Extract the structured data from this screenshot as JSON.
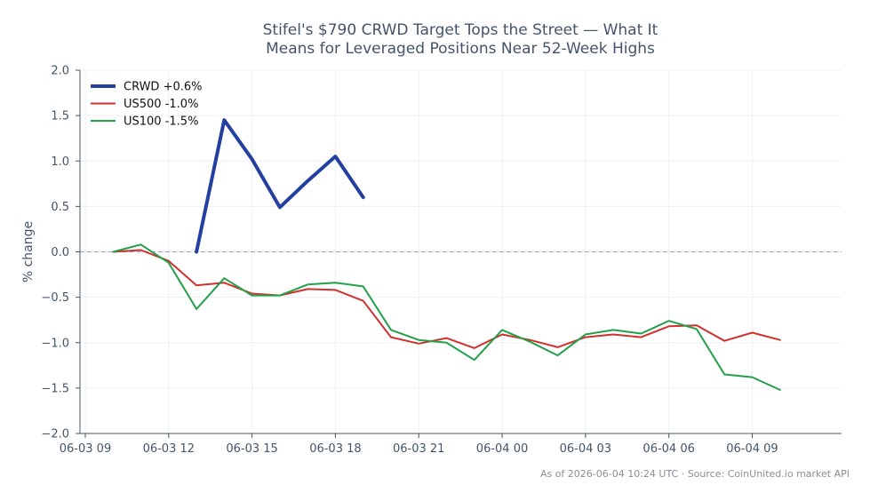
{
  "chart_data": {
    "type": "line",
    "title_lines": [
      "Stifel's $790 CRWD Target Tops the Street — What It",
      "Means for Leveraged Positions Near 52-Week Highs"
    ],
    "xlabel": "",
    "ylabel": "% change",
    "ylim": [
      -2.0,
      2.0
    ],
    "yticks": [
      2.0,
      1.5,
      1.0,
      0.5,
      0.0,
      -0.5,
      -1.0,
      -1.5,
      -2.0
    ],
    "ytick_labels": [
      "2.0",
      "1.5",
      "1.0",
      "0.5",
      "0.0",
      "−0.5",
      "−1.0",
      "−1.5",
      "−2.0"
    ],
    "xlim": [
      "06-03 09:00",
      "06-04 11:00"
    ],
    "xticks": [
      "06-03 09:00",
      "06-03 12:00",
      "06-03 15:00",
      "06-03 18:00",
      "06-03 21:00",
      "06-04 00:00",
      "06-04 03:00",
      "06-04 06:00",
      "06-04 09:00"
    ],
    "xtick_labels": [
      "06-03 09",
      "06-03 12",
      "06-03 15",
      "06-03 18",
      "06-03 21",
      "06-04 00",
      "06-04 03",
      "06-04 06",
      "06-04 09"
    ],
    "grid": true,
    "reference_line": {
      "y": 0.0,
      "style": "dashed",
      "color": "#9aa6b8"
    },
    "legend_position": "top-left",
    "series": [
      {
        "name": "CRWD +0.6%",
        "color": "#2340a0",
        "width": 4,
        "x": [
          "06-03 13:00",
          "06-03 14:00",
          "06-03 15:00",
          "06-03 16:00",
          "06-03 17:00",
          "06-03 18:00",
          "06-03 19:00"
        ],
        "y": [
          0.0,
          1.45,
          1.02,
          0.49,
          0.78,
          1.05,
          0.6
        ]
      },
      {
        "name": "US500 -1.0%",
        "color": "#d0312d",
        "width": 2,
        "x": [
          "06-03 10:00",
          "06-03 11:00",
          "06-03 12:00",
          "06-03 13:00",
          "06-03 14:00",
          "06-03 15:00",
          "06-03 16:00",
          "06-03 17:00",
          "06-03 18:00",
          "06-03 19:00",
          "06-03 20:00",
          "06-03 21:00",
          "06-03 22:00",
          "06-03 23:00",
          "06-04 00:00",
          "06-04 01:00",
          "06-04 02:00",
          "06-04 03:00",
          "06-04 04:00",
          "06-04 05:00",
          "06-04 06:00",
          "06-04 07:00",
          "06-04 08:00",
          "06-04 09:00",
          "06-04 10:00"
        ],
        "y": [
          0.0,
          0.02,
          -0.1,
          -0.37,
          -0.34,
          -0.46,
          -0.48,
          -0.41,
          -0.42,
          -0.54,
          -0.94,
          -1.01,
          -0.95,
          -1.06,
          -0.91,
          -0.97,
          -1.05,
          -0.94,
          -0.91,
          -0.94,
          -0.82,
          -0.81,
          -0.98,
          -0.89,
          -0.97
        ]
      },
      {
        "name": "US100 -1.5%",
        "color": "#22a04a",
        "width": 2,
        "x": [
          "06-03 10:00",
          "06-03 11:00",
          "06-03 12:00",
          "06-03 13:00",
          "06-03 14:00",
          "06-03 15:00",
          "06-03 16:00",
          "06-03 17:00",
          "06-03 18:00",
          "06-03 19:00",
          "06-03 20:00",
          "06-03 21:00",
          "06-03 22:00",
          "06-03 23:00",
          "06-04 00:00",
          "06-04 01:00",
          "06-04 02:00",
          "06-04 03:00",
          "06-04 04:00",
          "06-04 05:00",
          "06-04 06:00",
          "06-04 07:00",
          "06-04 08:00",
          "06-04 09:00",
          "06-04 10:00"
        ],
        "y": [
          0.0,
          0.08,
          -0.12,
          -0.63,
          -0.29,
          -0.48,
          -0.48,
          -0.36,
          -0.34,
          -0.38,
          -0.86,
          -0.97,
          -1.0,
          -1.19,
          -0.86,
          -0.99,
          -1.14,
          -0.91,
          -0.86,
          -0.9,
          -0.76,
          -0.85,
          -1.35,
          -1.38,
          -1.52
        ]
      }
    ]
  },
  "footer": "As of 2026-06-04 10:24 UTC · Source: CoinUnited.io market API"
}
